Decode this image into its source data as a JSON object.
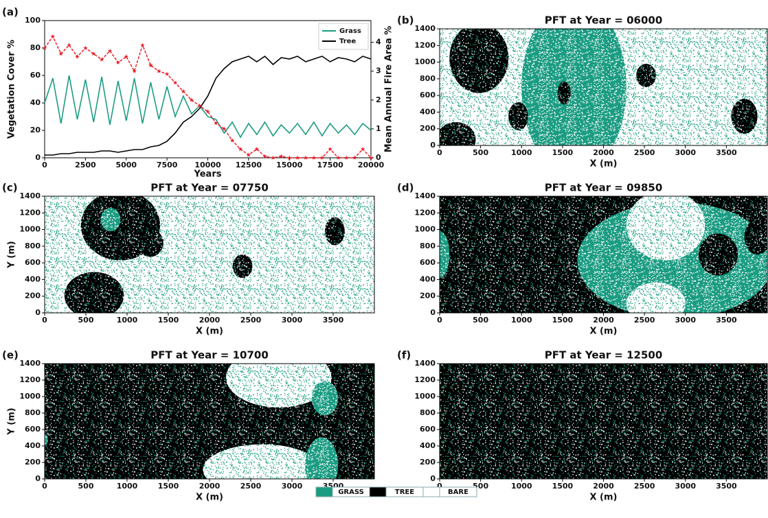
{
  "chart_data": [
    {
      "type": "line",
      "panel_label": "(a)",
      "xlabel": "Years",
      "ylabel": "Vegetation Cover %",
      "y2label": "Mean Annual Fire Area %",
      "x": [
        0,
        500,
        1000,
        1500,
        2000,
        2500,
        3000,
        3500,
        4000,
        4500,
        5000,
        5500,
        6000,
        6500,
        7000,
        7500,
        8000,
        8500,
        9000,
        9500,
        10000,
        10500,
        11000,
        11500,
        12000,
        12500,
        13000,
        13500,
        14000,
        14500,
        15000,
        15500,
        16000,
        16500,
        17000,
        17500,
        18000,
        18500,
        19000,
        19500,
        20000
      ],
      "series": [
        {
          "name": "Grass",
          "color": "#1a9c82",
          "values": [
            40,
            58,
            25,
            60,
            28,
            57,
            26,
            59,
            24,
            56,
            27,
            58,
            25,
            55,
            28,
            52,
            30,
            45,
            32,
            38,
            30,
            28,
            18,
            26,
            15,
            25,
            17,
            26,
            16,
            24,
            18,
            25,
            17,
            26,
            16,
            25,
            18,
            24,
            17,
            25,
            20
          ]
        },
        {
          "name": "Tree",
          "color": "#000000",
          "values": [
            2,
            2,
            3,
            3,
            4,
            4,
            4,
            5,
            5,
            4,
            5,
            6,
            6,
            8,
            9,
            12,
            18,
            26,
            30,
            36,
            45,
            58,
            65,
            70,
            72,
            74,
            70,
            74,
            68,
            73,
            72,
            74,
            70,
            72,
            74,
            70,
            73,
            72,
            70,
            74,
            72
          ]
        },
        {
          "color": "#e8202a",
          "axis": "y2",
          "linestyle": "dashed",
          "marker": "star",
          "values": [
            3.8,
            4.2,
            3.6,
            3.9,
            3.5,
            3.8,
            3.6,
            3.4,
            3.7,
            3.3,
            3.5,
            3.0,
            3.9,
            3.2,
            3.0,
            2.9,
            2.6,
            2.3,
            2.0,
            1.8,
            1.6,
            1.2,
            1.0,
            0.6,
            0.3,
            0.1,
            0.3,
            0.05,
            0,
            0.05,
            0,
            0,
            0,
            0,
            0,
            0.3,
            0,
            0,
            0,
            0.3,
            0
          ]
        }
      ],
      "xlim": [
        0,
        20000
      ],
      "xticks": [
        0,
        2500,
        5000,
        7500,
        10000,
        12500,
        15000,
        17500,
        20000
      ],
      "ylim": [
        0,
        100
      ],
      "yticks": [
        0,
        20,
        40,
        60,
        80,
        100
      ],
      "y2lim": [
        0,
        4.75
      ],
      "y2ticks": [
        0,
        1,
        2,
        3,
        4
      ],
      "legend": "upper right"
    },
    {
      "type": "map",
      "panel_label": "(b)",
      "title": "PFT at Year = 06000",
      "xlabel": "X (m)",
      "xlim": [
        0,
        4000
      ],
      "xticks": [
        0,
        500,
        1000,
        1500,
        2000,
        2500,
        3000,
        3500
      ],
      "ylim": [
        0,
        1400
      ],
      "yticks": [
        0,
        200,
        400,
        600,
        800,
        1000,
        1200,
        1400
      ]
    },
    {
      "type": "map",
      "panel_label": "(c)",
      "title": "PFT at Year = 07750",
      "xlabel": "X (m)",
      "ylabel": "Y (m)",
      "xlim": [
        0,
        4000
      ],
      "xticks": [
        0,
        500,
        1000,
        1500,
        2000,
        2500,
        3000,
        3500
      ],
      "ylim": [
        0,
        1400
      ],
      "yticks": [
        0,
        200,
        400,
        600,
        800,
        1000,
        1200,
        1400
      ]
    },
    {
      "type": "map",
      "panel_label": "(d)",
      "title": "PFT at Year = 09850",
      "xlabel": "X (m)",
      "xlim": [
        0,
        4000
      ],
      "xticks": [
        0,
        500,
        1000,
        1500,
        2000,
        2500,
        3000,
        3500
      ],
      "ylim": [
        0,
        1400
      ],
      "yticks": [
        0,
        200,
        400,
        600,
        800,
        1000,
        1200,
        1400
      ]
    },
    {
      "type": "map",
      "panel_label": "(e)",
      "title": "PFT at Year = 10700",
      "xlabel": "X (m)",
      "ylabel": "Y (m)",
      "xlim": [
        0,
        4000
      ],
      "xticks": [
        0,
        500,
        1000,
        1500,
        2000,
        2500,
        3000,
        3500
      ],
      "ylim": [
        0,
        1400
      ],
      "yticks": [
        0,
        200,
        400,
        600,
        800,
        1000,
        1200,
        1400
      ]
    },
    {
      "type": "map",
      "panel_label": "(f)",
      "title": "PFT at Year = 12500",
      "xlabel": "X (m)",
      "xlim": [
        0,
        4000
      ],
      "xticks": [
        0,
        500,
        1000,
        1500,
        2000,
        2500,
        3000,
        3500
      ],
      "ylim": [
        0,
        1400
      ],
      "yticks": [
        0,
        200,
        400,
        600,
        800,
        1000,
        1200,
        1400
      ]
    }
  ],
  "legend": {
    "items": [
      {
        "label": "GRASS",
        "color": "#1a9c82"
      },
      {
        "label": "TREE",
        "color": "#000000"
      },
      {
        "label": "BARE",
        "color": "#ffffff"
      }
    ]
  }
}
